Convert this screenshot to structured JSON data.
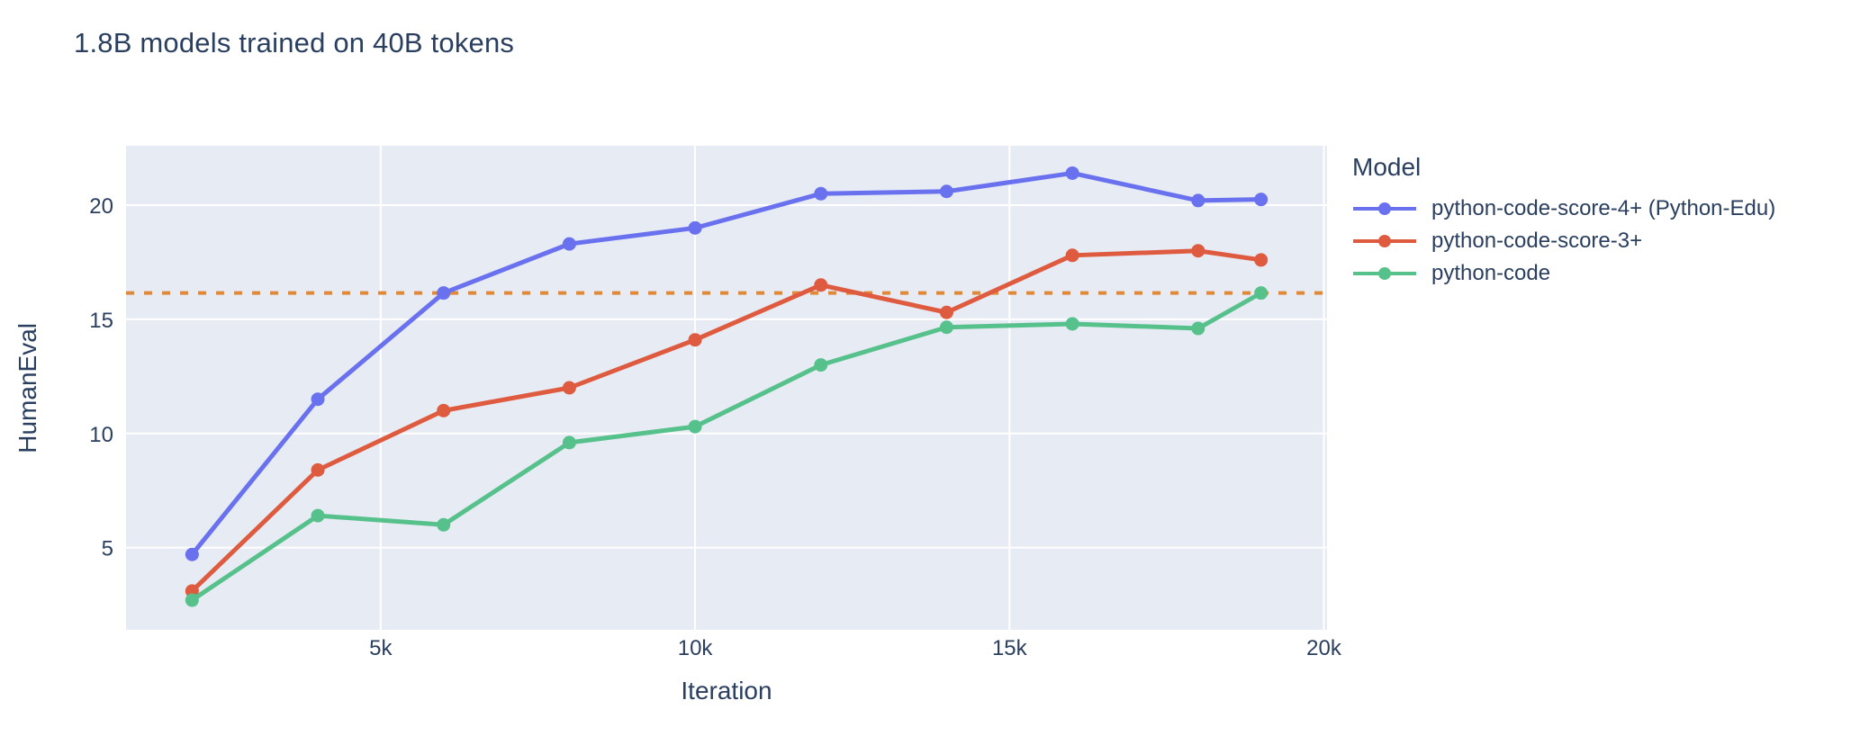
{
  "title": "1.8B models trained on 40B tokens",
  "chart_data": {
    "type": "line",
    "title": "1.8B models trained on 40B tokens",
    "xlabel": "Iteration",
    "ylabel": "HumanEval",
    "x": [
      2000,
      4000,
      6000,
      8000,
      10000,
      12000,
      14000,
      16000,
      18000,
      19000
    ],
    "series": [
      {
        "name": "python-code-score-4+ (Python-Edu)",
        "color": "#6A71EF",
        "values": [
          4.7,
          11.5,
          16.15,
          18.3,
          19.0,
          20.5,
          20.6,
          21.4,
          20.2,
          20.25
        ]
      },
      {
        "name": "python-code-score-3+",
        "color": "#DF5B3F",
        "values": [
          3.1,
          8.4,
          11.0,
          12.0,
          14.1,
          16.5,
          15.3,
          17.8,
          18.0,
          17.6
        ]
      },
      {
        "name": "python-code",
        "color": "#57C18C",
        "values": [
          2.7,
          6.4,
          6.0,
          9.6,
          10.3,
          13.0,
          14.65,
          14.8,
          14.6,
          16.15
        ]
      }
    ],
    "reference_line": {
      "y": 16.15,
      "color": "#DD8A3E",
      "style": "dashed"
    },
    "x_ticks": [
      {
        "value": 5000,
        "label": "5k"
      },
      {
        "value": 10000,
        "label": "10k"
      },
      {
        "value": 15000,
        "label": "15k"
      },
      {
        "value": 20000,
        "label": "20k"
      }
    ],
    "y_ticks": [
      {
        "value": 5,
        "label": "5"
      },
      {
        "value": 10,
        "label": "10"
      },
      {
        "value": 15,
        "label": "15"
      },
      {
        "value": 20,
        "label": "20"
      }
    ],
    "x_range": [
      950,
      20050
    ],
    "y_range": [
      1.4,
      22.6
    ],
    "grid": true,
    "legend_position": "right",
    "legend_title": "Model",
    "plot_bg": "#E7EBF4",
    "grid_color": "#FFFFFF",
    "text_color": "#2A3F5F"
  }
}
